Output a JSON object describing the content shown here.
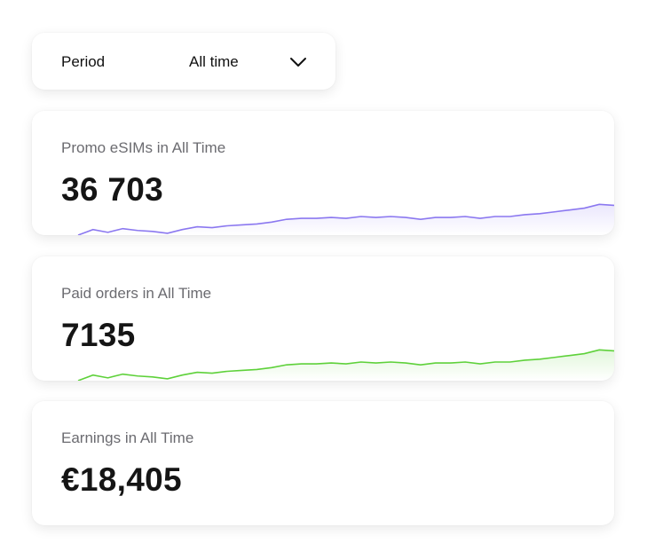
{
  "period": {
    "label": "Period",
    "value": "All time",
    "icon": "chevron-down-icon"
  },
  "stats": [
    {
      "title": "Promo eSIMs in All Time",
      "value": "36 703",
      "color": "#8b78f0",
      "sparkline": [
        0,
        6,
        3,
        7,
        5,
        4,
        2,
        6,
        9,
        8,
        10,
        11,
        12,
        14,
        17,
        18,
        18,
        19,
        18,
        20,
        19,
        20,
        19,
        17,
        19,
        19,
        20,
        18,
        20,
        20,
        22,
        23,
        25,
        27,
        29,
        33,
        32
      ]
    },
    {
      "title": "Paid orders in All Time",
      "value": "7135",
      "color": "#5ed13a",
      "sparkline": [
        0,
        6,
        3,
        7,
        5,
        4,
        2,
        6,
        9,
        8,
        10,
        11,
        12,
        14,
        17,
        18,
        18,
        19,
        18,
        20,
        19,
        20,
        19,
        17,
        19,
        19,
        20,
        18,
        20,
        20,
        22,
        23,
        25,
        27,
        29,
        33,
        32
      ]
    },
    {
      "title": "Earnings in All Time",
      "value": "€18,405"
    }
  ]
}
